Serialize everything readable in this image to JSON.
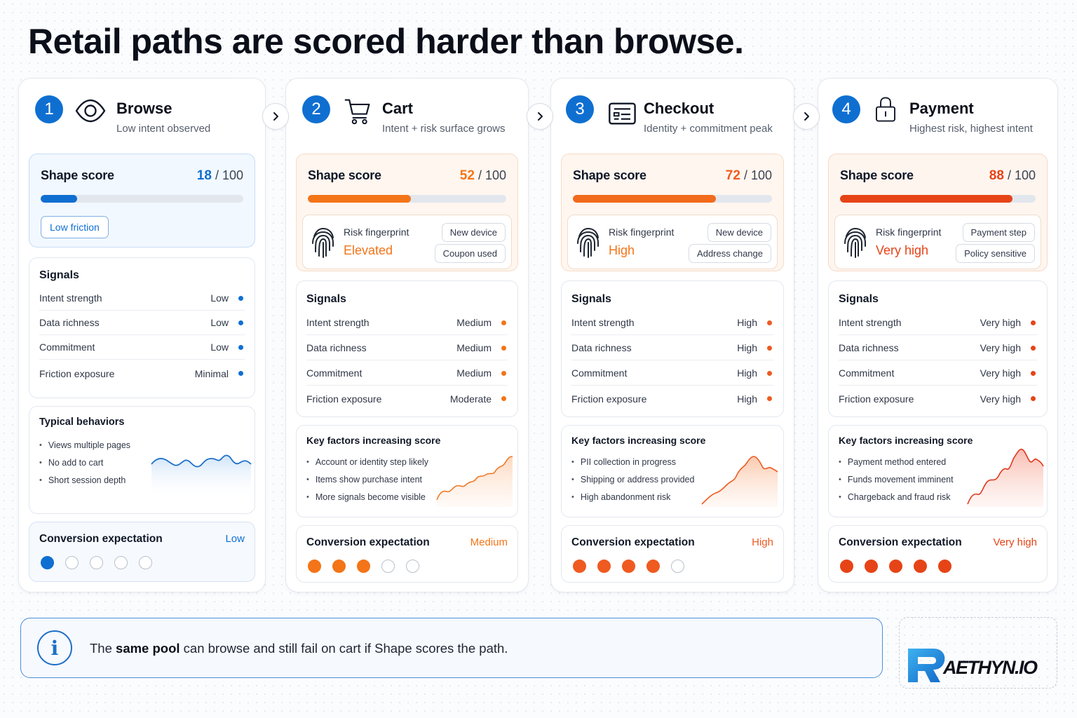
{
  "title": "Retail paths are scored harder than browse.",
  "labels": {
    "shape_score": "Shape score",
    "score_max": "/ 100",
    "signals": "Signals",
    "risk_fingerprint": "Risk fingerprint",
    "typical_behaviors": "Typical behaviors",
    "key_factors": "Key factors increasing score",
    "conversion_expectation": "Conversion expectation"
  },
  "signal_names": [
    "Intent strength",
    "Data richness",
    "Commitment",
    "Friction exposure"
  ],
  "colors": {
    "blue": "#0f6fd1",
    "orange": "#f47418",
    "orange_red": "#ef5a21",
    "red": "#e64417",
    "empty_dot_border": "#b9c0cb"
  },
  "stages": [
    {
      "number": "1",
      "name": "Browse",
      "desc": "Low intent observed",
      "icon": "eye-icon",
      "score": 18,
      "friction_label": "Low friction",
      "signals": [
        "Low",
        "Low",
        "Low",
        "Minimal"
      ],
      "behaviors": [
        "Views multiple pages",
        "No add to cart",
        "Short session depth"
      ],
      "conversion": "Low",
      "conversion_filled": 1
    },
    {
      "number": "2",
      "name": "Cart",
      "desc": "Intent + risk surface grows",
      "icon": "cart-icon",
      "score": 52,
      "fingerprint_level": "Elevated",
      "tags": [
        "New device",
        "Coupon used"
      ],
      "signals": [
        "Medium",
        "Medium",
        "Medium",
        "Moderate"
      ],
      "factors": [
        "Account or identity step likely",
        "Items show purchase intent",
        "More signals become visible"
      ],
      "conversion": "Medium",
      "conversion_filled": 3
    },
    {
      "number": "3",
      "name": "Checkout",
      "desc": "Identity + commitment peak",
      "icon": "id-card-icon",
      "score": 72,
      "fingerprint_level": "High",
      "tags": [
        "New device",
        "Address change"
      ],
      "signals": [
        "High",
        "High",
        "High",
        "High"
      ],
      "factors": [
        "PII collection in progress",
        "Shipping or address provided",
        "High abandonment risk"
      ],
      "conversion": "High",
      "conversion_filled": 4
    },
    {
      "number": "4",
      "name": "Payment",
      "desc": "Highest risk, highest intent",
      "icon": "lock-icon",
      "score": 88,
      "fingerprint_level": "Very high",
      "tags": [
        "Payment step",
        "Policy sensitive"
      ],
      "signals": [
        "Very high",
        "Very high",
        "Very high",
        "Very high"
      ],
      "factors": [
        "Payment method entered",
        "Funds movement imminent",
        "Chargeback and fraud risk"
      ],
      "conversion": "Very high",
      "conversion_filled": 5
    }
  ],
  "info": {
    "lead": "The ",
    "bold": "same pool",
    "rest": " can browse and still fail on cart if Shape scores the path."
  },
  "logo": "AETHYN.IO"
}
